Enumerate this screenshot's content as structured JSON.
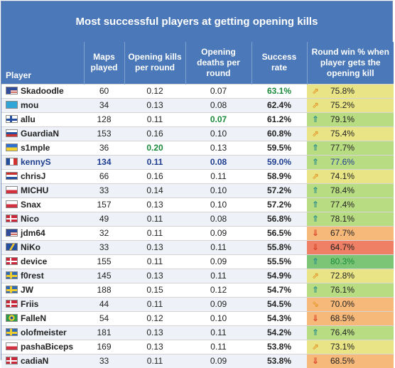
{
  "title": "Most successful players at getting opening kills",
  "headers": {
    "player": "Player",
    "maps": "Maps played",
    "okpr": "Opening kills per round",
    "odpr": "Opening deaths per round",
    "success": "Success rate",
    "roundwin": "Round win % when player gets the opening kill"
  },
  "colors": {
    "header_bg": "#4a78b8",
    "success_green": "#1a8a3a",
    "highlight_blue": "#1e3d8f",
    "heat_green": "#7cc576",
    "heat_red": "#ef8065"
  },
  "rows": [
    {
      "player": "Skadoodle",
      "flag": "us-flag",
      "maps": "60",
      "okpr": "0.12",
      "odpr": "0.07",
      "success": "63.1%",
      "arrow": "up-right-arrow-icon",
      "arrow_glyph": "⇗",
      "arrow_color": "#e39a2d",
      "winrate": "75.8%",
      "heat": "yellow"
    },
    {
      "player": "mou",
      "flag": "kz-flag",
      "maps": "34",
      "okpr": "0.13",
      "odpr": "0.08",
      "success": "62.4%",
      "arrow": "up-right-arrow-icon",
      "arrow_glyph": "⇗",
      "arrow_color": "#e39a2d",
      "winrate": "75.2%",
      "heat": "yellow"
    },
    {
      "player": "allu",
      "flag": "fi-flag",
      "maps": "128",
      "okpr": "0.11",
      "odpr": "0.07",
      "success": "61.2%",
      "arrow": "up-arrow-icon",
      "arrow_glyph": "⇑",
      "arrow_color": "#2f8f8a",
      "winrate": "79.1%",
      "heat": "lgreen"
    },
    {
      "player": "GuardiaN",
      "flag": "sk-flag",
      "maps": "153",
      "okpr": "0.16",
      "odpr": "0.10",
      "success": "60.8%",
      "arrow": "up-right-arrow-icon",
      "arrow_glyph": "⇗",
      "arrow_color": "#e39a2d",
      "winrate": "75.4%",
      "heat": "yellow"
    },
    {
      "player": "s1mple",
      "flag": "ua-flag",
      "maps": "36",
      "okpr": "0.20",
      "odpr": "0.13",
      "success": "59.5%",
      "arrow": "up-arrow-icon",
      "arrow_glyph": "⇑",
      "arrow_color": "#2f8f8a",
      "winrate": "77.7%",
      "heat": "lgreen"
    },
    {
      "player": "kennyS",
      "flag": "fr-flag",
      "maps": "134",
      "okpr": "0.11",
      "odpr": "0.08",
      "success": "59.0%",
      "arrow": "up-arrow-icon",
      "arrow_glyph": "⇑",
      "arrow_color": "#2f8f8a",
      "winrate": "77.6%",
      "heat": "lgreen"
    },
    {
      "player": "chrisJ",
      "flag": "nl-flag",
      "maps": "66",
      "okpr": "0.16",
      "odpr": "0.11",
      "success": "58.9%",
      "arrow": "up-right-arrow-icon",
      "arrow_glyph": "⇗",
      "arrow_color": "#e39a2d",
      "winrate": "74.1%",
      "heat": "yellow"
    },
    {
      "player": "MICHU",
      "flag": "pl-flag",
      "maps": "33",
      "okpr": "0.14",
      "odpr": "0.10",
      "success": "57.2%",
      "arrow": "up-arrow-icon",
      "arrow_glyph": "⇑",
      "arrow_color": "#2f8f8a",
      "winrate": "78.4%",
      "heat": "lgreen"
    },
    {
      "player": "Snax",
      "flag": "pl-flag",
      "maps": "157",
      "okpr": "0.13",
      "odpr": "0.10",
      "success": "57.2%",
      "arrow": "up-arrow-icon",
      "arrow_glyph": "⇑",
      "arrow_color": "#2f8f8a",
      "winrate": "77.4%",
      "heat": "lgreen"
    },
    {
      "player": "Nico",
      "flag": "dk-flag",
      "maps": "49",
      "okpr": "0.11",
      "odpr": "0.08",
      "success": "56.8%",
      "arrow": "up-arrow-icon",
      "arrow_glyph": "⇑",
      "arrow_color": "#2f8f8a",
      "winrate": "78.1%",
      "heat": "lgreen"
    },
    {
      "player": "jdm64",
      "flag": "us-flag",
      "maps": "32",
      "okpr": "0.11",
      "odpr": "0.09",
      "success": "56.5%",
      "arrow": "down-arrow-icon",
      "arrow_glyph": "⇓",
      "arrow_color": "#d9452b",
      "winrate": "67.7%",
      "heat": "orange"
    },
    {
      "player": "NiKo",
      "flag": "ba-flag",
      "maps": "33",
      "okpr": "0.13",
      "odpr": "0.11",
      "success": "55.8%",
      "arrow": "down-arrow-icon",
      "arrow_glyph": "⇓",
      "arrow_color": "#d9452b",
      "winrate": "64.7%",
      "heat": "red"
    },
    {
      "player": "device",
      "flag": "dk-flag",
      "maps": "155",
      "okpr": "0.11",
      "odpr": "0.09",
      "success": "55.5%",
      "arrow": "up-arrow-icon",
      "arrow_glyph": "⇑",
      "arrow_color": "#2f8f8a",
      "winrate": "80.3%",
      "heat": "green"
    },
    {
      "player": "f0rest",
      "flag": "se-flag",
      "maps": "145",
      "okpr": "0.13",
      "odpr": "0.11",
      "success": "54.9%",
      "arrow": "up-right-arrow-icon",
      "arrow_glyph": "⇗",
      "arrow_color": "#e39a2d",
      "winrate": "72.8%",
      "heat": "yellow"
    },
    {
      "player": "JW",
      "flag": "se-flag",
      "maps": "188",
      "okpr": "0.15",
      "odpr": "0.12",
      "success": "54.7%",
      "arrow": "up-arrow-icon",
      "arrow_glyph": "⇑",
      "arrow_color": "#2f8f8a",
      "winrate": "76.1%",
      "heat": "lgreen"
    },
    {
      "player": "Friis",
      "flag": "dk-flag",
      "maps": "44",
      "okpr": "0.11",
      "odpr": "0.09",
      "success": "54.5%",
      "arrow": "down-right-arrow-icon",
      "arrow_glyph": "⇘",
      "arrow_color": "#e39a2d",
      "winrate": "70.0%",
      "heat": "orange"
    },
    {
      "player": "FalleN",
      "flag": "br-flag",
      "maps": "54",
      "okpr": "0.12",
      "odpr": "0.10",
      "success": "54.3%",
      "arrow": "down-arrow-icon",
      "arrow_glyph": "⇓",
      "arrow_color": "#d9452b",
      "winrate": "68.5%",
      "heat": "orange"
    },
    {
      "player": "olofmeister",
      "flag": "se-flag",
      "maps": "181",
      "okpr": "0.13",
      "odpr": "0.11",
      "success": "54.2%",
      "arrow": "up-arrow-icon",
      "arrow_glyph": "⇑",
      "arrow_color": "#2f8f8a",
      "winrate": "76.4%",
      "heat": "lgreen"
    },
    {
      "player": "pashaBiceps",
      "flag": "pl-flag",
      "maps": "169",
      "okpr": "0.13",
      "odpr": "0.11",
      "success": "53.8%",
      "arrow": "up-right-arrow-icon",
      "arrow_glyph": "⇗",
      "arrow_color": "#e39a2d",
      "winrate": "73.1%",
      "heat": "yellow"
    },
    {
      "player": "cadiaN",
      "flag": "dk-flag",
      "maps": "33",
      "okpr": "0.11",
      "odpr": "0.09",
      "success": "53.8%",
      "arrow": "down-arrow-icon",
      "arrow_glyph": "⇓",
      "arrow_color": "#d9452b",
      "winrate": "68.5%",
      "heat": "orange"
    }
  ]
}
